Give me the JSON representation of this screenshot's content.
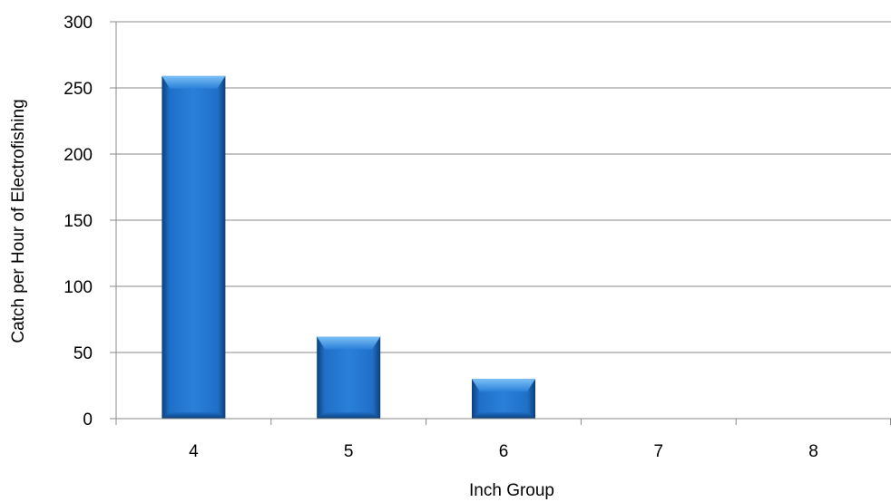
{
  "chart_data": {
    "type": "bar",
    "categories": [
      "4",
      "5",
      "6",
      "7",
      "8"
    ],
    "values": [
      259,
      62,
      30,
      0,
      0
    ],
    "title": "",
    "xlabel": "Inch Group",
    "ylabel": "Catch per Hour of Electrofishing",
    "ylim": [
      0,
      300
    ],
    "yticks": [
      0,
      50,
      100,
      150,
      200,
      250,
      300
    ],
    "grid": true,
    "legend": "none",
    "colors": {
      "bar": "#1f6fc8",
      "bar_light": "#5aa8ec",
      "bar_dark": "#0d3f78",
      "gridline": "#888888",
      "axis": "#888888"
    }
  }
}
